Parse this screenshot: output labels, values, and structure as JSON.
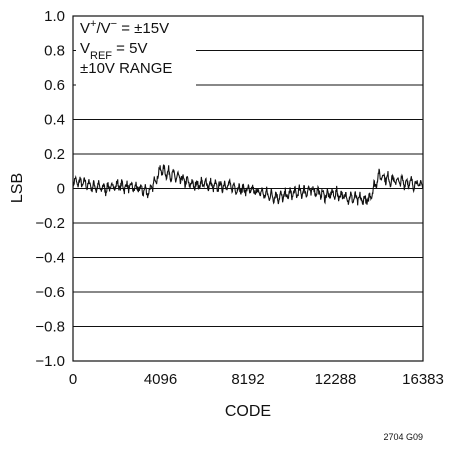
{
  "chart_data": {
    "type": "line",
    "xlabel": "CODE",
    "ylabel": "LSB",
    "xlim": [
      0,
      16383
    ],
    "ylim": [
      -1.0,
      1.0
    ],
    "x_ticks": [
      0,
      4096,
      8192,
      12288,
      16383
    ],
    "x_tick_labels": [
      "0",
      "4096",
      "8192",
      "12288",
      "16383"
    ],
    "y_ticks": [
      1.0,
      0.8,
      0.6,
      0.4,
      0.2,
      0,
      -0.2,
      -0.4,
      -0.6,
      -0.8,
      -1.0
    ],
    "y_tick_labels": [
      "1.0",
      "0.8",
      "0.6",
      "0.4",
      "0.2",
      "0",
      "−0.2",
      "−0.4",
      "−0.6",
      "−0.8",
      "−1.0"
    ],
    "grid": "horizontal",
    "conditions": [
      {
        "lines": [
          {
            "text": "V"
          },
          {
            "text": "+",
            "sup": true
          },
          {
            "text": "/V"
          },
          {
            "text": "−",
            "sup": true
          },
          {
            "text": " = ±15V"
          }
        ]
      },
      {
        "lines": [
          {
            "text": "V"
          },
          {
            "text": "REF",
            "sub": true
          },
          {
            "text": " = 5V"
          }
        ]
      },
      {
        "lines": [
          {
            "text": "±10V RANGE"
          }
        ]
      }
    ],
    "series": [
      {
        "values_x": [
          0,
          512,
          1024,
          1536,
          2048,
          2560,
          3072,
          3584,
          4096,
          4608,
          5120,
          5632,
          6144,
          6656,
          7168,
          7680,
          8192,
          8704,
          9216,
          9728,
          10240,
          10752,
          11264,
          11776,
          12288,
          12800,
          13312,
          13824,
          14336,
          14848,
          15360,
          15872,
          16383
        ],
        "values_y": [
          0.04,
          0.03,
          0.01,
          0.0,
          0.02,
          0.01,
          0.0,
          -0.02,
          0.11,
          0.08,
          0.05,
          0.02,
          0.03,
          0.01,
          0.02,
          0.0,
          -0.01,
          -0.02,
          -0.04,
          -0.05,
          -0.03,
          -0.02,
          -0.01,
          -0.04,
          -0.03,
          -0.05,
          -0.06,
          -0.07,
          0.08,
          0.05,
          0.04,
          0.03,
          0.02
        ],
        "amplitude": 0.045,
        "color": "#111111"
      }
    ]
  },
  "figure_id": "2704 G09",
  "colors": {
    "frame": "#111111",
    "grid": "#111111",
    "trace": "#111111",
    "background": "#ffffff"
  }
}
